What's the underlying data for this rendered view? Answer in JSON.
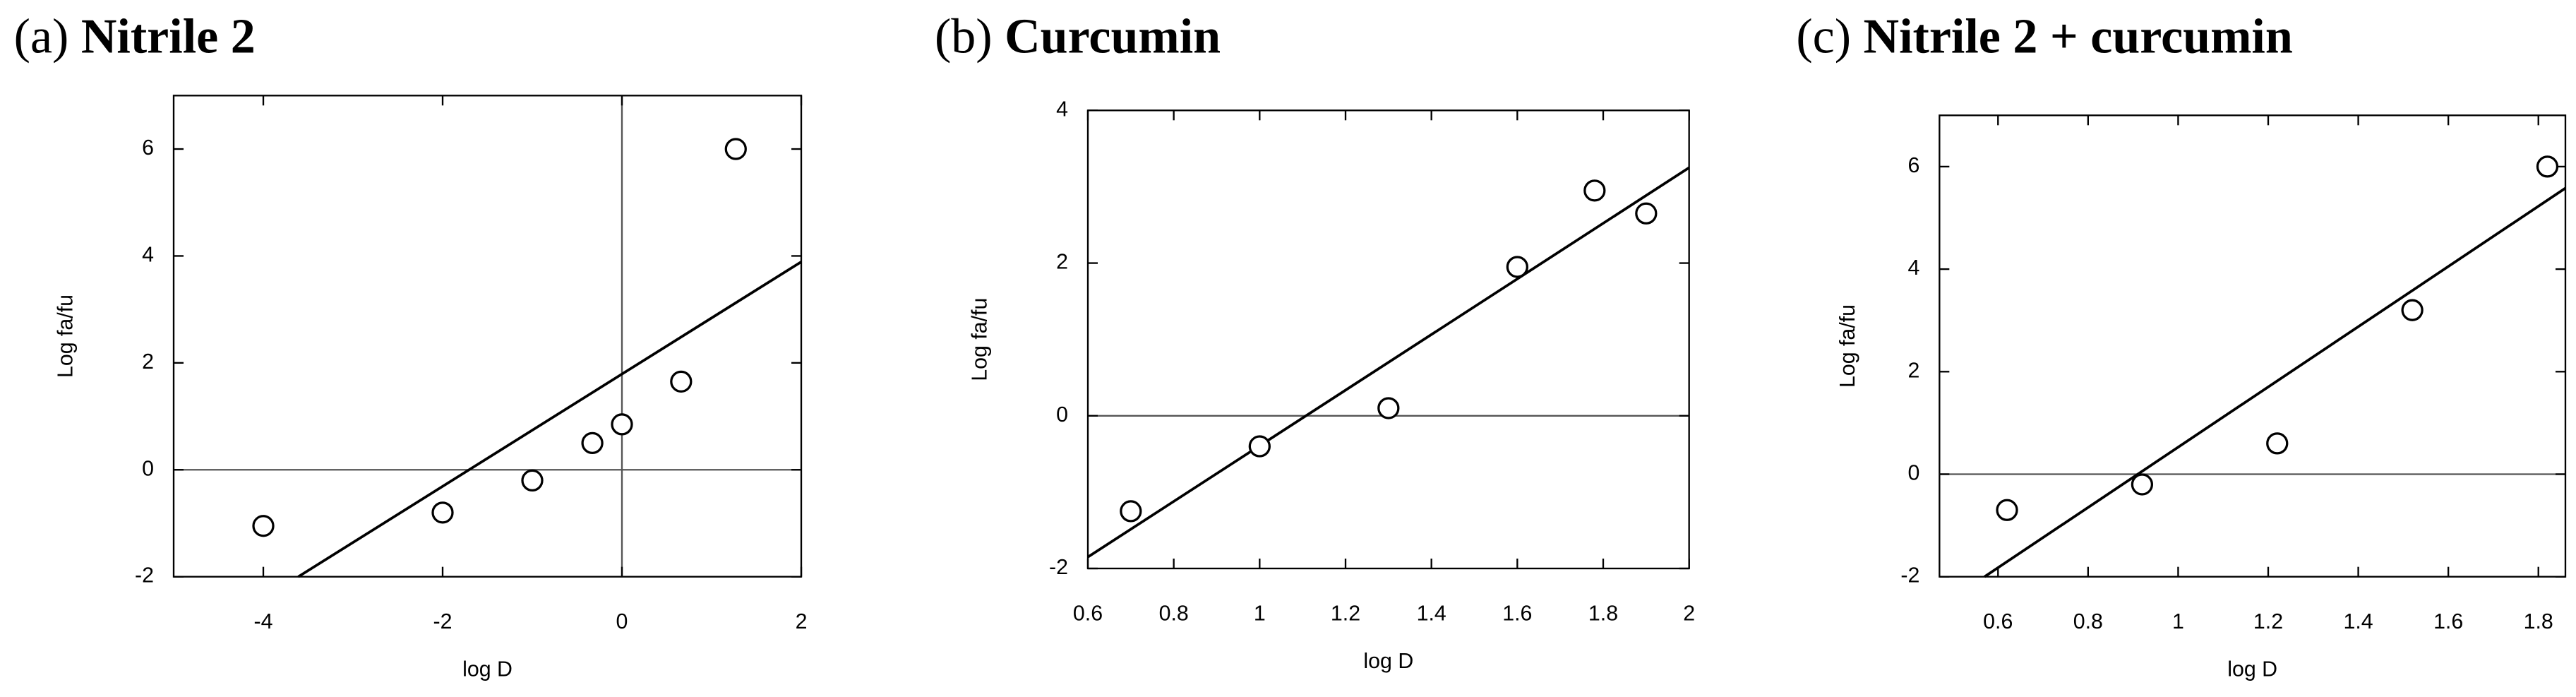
{
  "chart_data": [
    {
      "type": "scatter",
      "label": "(a)",
      "title": "Nitrile 2",
      "x_label": "log D",
      "y_label": "Log fa/fu",
      "x": [
        -4,
        -2,
        -1,
        -0.33,
        0,
        0.66,
        1.27
      ],
      "values": [
        -1.05,
        -0.8,
        -0.2,
        0.5,
        0.85,
        1.65,
        6.0
      ],
      "fit": {
        "x": [
          -3.61,
          2
        ],
        "y": [
          -2,
          3.89
        ]
      },
      "xlim": [
        -5,
        2
      ],
      "ylim": [
        -2,
        7
      ],
      "xticks": [
        -4,
        -2,
        0,
        2
      ],
      "yticks": [
        -2,
        0,
        2,
        4,
        6
      ],
      "hlines": [
        0
      ],
      "vlines": [
        0
      ]
    },
    {
      "type": "scatter",
      "label": "(b)",
      "title": "Curcumin",
      "x_label": "log D",
      "y_label": "Log fa/fu",
      "x": [
        0.7,
        1.0,
        1.3,
        1.6,
        1.78,
        1.9
      ],
      "values": [
        -1.25,
        -0.4,
        0.1,
        1.95,
        2.95,
        2.65
      ],
      "fit": {
        "x": [
          0.6,
          2
        ],
        "y": [
          -1.85,
          3.25
        ]
      },
      "xlim": [
        0.6,
        2
      ],
      "ylim": [
        -2,
        4
      ],
      "xticks": [
        0.6,
        0.8,
        1,
        1.2,
        1.4,
        1.6,
        1.8,
        2
      ],
      "yticks": [
        -2,
        0,
        2,
        4
      ],
      "hlines": [
        0
      ]
    },
    {
      "type": "scatter",
      "label": "(c)",
      "title": "Nitrile 2 + curcumin",
      "x_label": "log D",
      "y_label": "Log fa/fu",
      "x": [
        0.62,
        0.92,
        1.22,
        1.52,
        1.82
      ],
      "values": [
        -0.7,
        -0.2,
        0.6,
        3.2,
        6.0
      ],
      "fit": {
        "x": [
          0.57,
          1.86
        ],
        "y": [
          -2,
          5.58
        ]
      },
      "xlim": [
        0.47,
        1.86
      ],
      "ylim": [
        -2,
        7
      ],
      "xticks": [
        0.6,
        0.8,
        1,
        1.2,
        1.4,
        1.6,
        1.8
      ],
      "yticks": [
        -2,
        0,
        2,
        4,
        6
      ],
      "hlines": [
        0
      ]
    }
  ]
}
